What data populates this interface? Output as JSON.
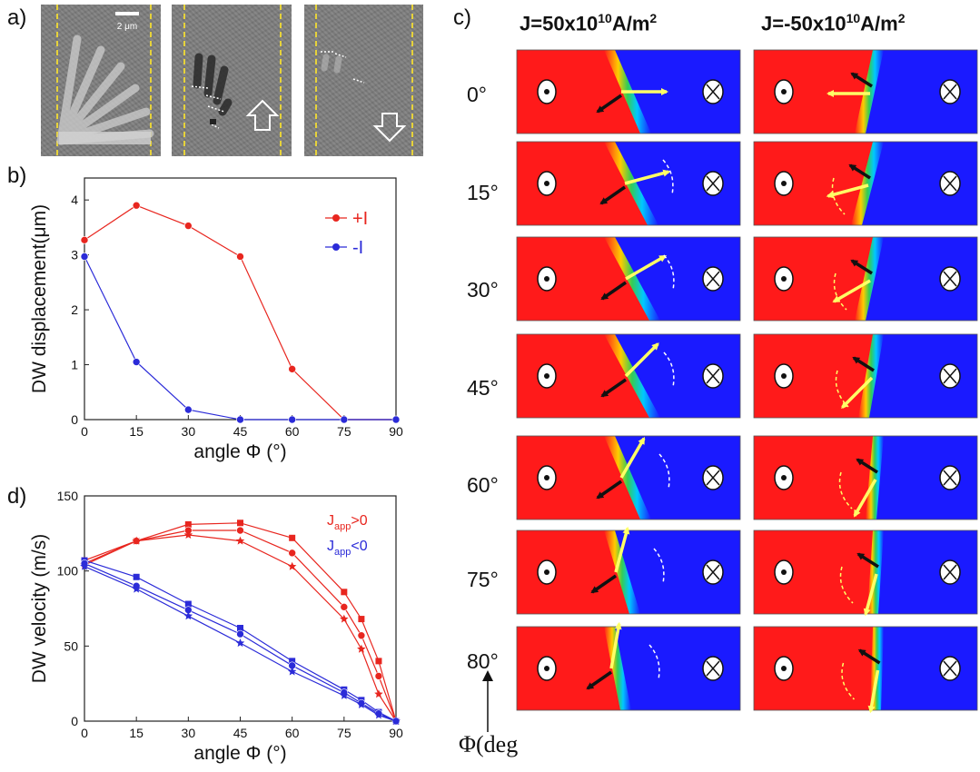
{
  "panel_labels": {
    "a": "a)",
    "b": "b)",
    "c": "c)",
    "d": "d)"
  },
  "panel_a": {
    "scale_bar_label": "2 μm"
  },
  "panel_c": {
    "column_titles": {
      "left": {
        "prefix": "J=50x10",
        "exp": "10",
        "suffix": "A/m",
        "exp2": "2"
      },
      "right": {
        "prefix": "J=-50x10",
        "exp": "10",
        "suffix": "A/m",
        "exp2": "2"
      }
    },
    "angles": [
      "0°",
      "15°",
      "30°",
      "45°",
      "60°",
      "75°",
      "80°"
    ],
    "phi_axis_label": "Φ(deg",
    "colors": {
      "red": "#ff1a1a",
      "blue": "#1a1aff",
      "yellow": "#ffff66",
      "black": "#111111"
    }
  },
  "chart_data": [
    {
      "id": "b",
      "type": "line",
      "xlabel": "angle Φ (°)",
      "ylabel": "DW displacement(μm)",
      "xlim": [
        0,
        90
      ],
      "ylim": [
        0,
        4.4
      ],
      "xticks": [
        "0",
        "15",
        "30",
        "45",
        "60",
        "75",
        "90"
      ],
      "yticks": [
        "0",
        "1",
        "2",
        "3",
        "4"
      ],
      "legend_placement": "top-right",
      "x": [
        0,
        15,
        30,
        45,
        60,
        75,
        90
      ],
      "series": [
        {
          "name": "+I",
          "color": "#e8261f",
          "marker": "circle",
          "values": [
            3.27,
            3.9,
            3.53,
            2.97,
            0.92,
            0.0,
            0.0
          ]
        },
        {
          "name": "-I",
          "color": "#2b2bd8",
          "marker": "circle",
          "values": [
            2.97,
            1.05,
            0.18,
            0.0,
            0.0,
            0.0,
            0.0
          ]
        }
      ]
    },
    {
      "id": "d",
      "type": "line",
      "xlabel": "angle Φ (°)",
      "ylabel": "DW velocity (m/s)",
      "xlim": [
        0,
        90
      ],
      "ylim": [
        0,
        150
      ],
      "xticks": [
        "0",
        "15",
        "30",
        "45",
        "60",
        "75",
        "90"
      ],
      "yticks": [
        "0",
        "50",
        "100",
        "150"
      ],
      "legend_placement": "top-right",
      "legend": [
        {
          "main": "J",
          "sub": "app",
          "rest": ">0",
          "color": "#e8261f"
        },
        {
          "main": "J",
          "sub": "app",
          "rest": "<0",
          "color": "#2b2bd8"
        }
      ],
      "x": [
        0,
        15,
        30,
        45,
        60,
        75,
        80,
        85,
        90
      ],
      "series": [
        {
          "color": "#e8261f",
          "marker": "square",
          "values": [
            107,
            120,
            131,
            132,
            122,
            86,
            68,
            40,
            0
          ]
        },
        {
          "color": "#e8261f",
          "marker": "circle",
          "values": [
            105,
            120,
            127,
            127,
            112,
            76,
            57,
            30,
            0
          ]
        },
        {
          "color": "#e8261f",
          "marker": "star",
          "values": [
            104,
            120,
            124,
            120,
            103,
            68,
            48,
            18,
            0
          ]
        },
        {
          "color": "#2b2bd8",
          "marker": "square",
          "values": [
            107,
            96,
            78,
            62,
            40,
            21,
            14,
            6,
            0
          ]
        },
        {
          "color": "#2b2bd8",
          "marker": "circle",
          "values": [
            105,
            90,
            74,
            58,
            37,
            19,
            12,
            5,
            0
          ]
        },
        {
          "color": "#2b2bd8",
          "marker": "star",
          "values": [
            103,
            88,
            70,
            52,
            33,
            17,
            11,
            4,
            0
          ]
        }
      ]
    }
  ]
}
